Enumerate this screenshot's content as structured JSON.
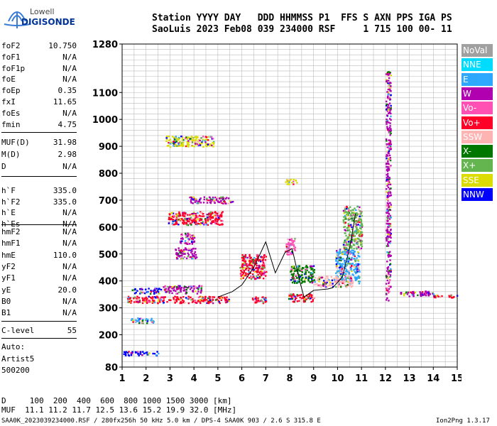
{
  "logo": {
    "line1": "Lowell",
    "line2": "DIGISONDE"
  },
  "header": {
    "line1": "Station YYYY DAY   DDD HHMMSS P1  FFS S AXN PPS IGA PS",
    "line2": "SaoLuis 2023 Feb08 039 234000 RSF     1 715 100 00- 11"
  },
  "params1": [
    {
      "k": "foF2",
      "v": "10.750"
    },
    {
      "k": "foF1",
      "v": "N/A"
    },
    {
      "k": "foF1p",
      "v": "N/A"
    },
    {
      "k": "foE",
      "v": "N/A"
    },
    {
      "k": "foEp",
      "v": "0.35"
    },
    {
      "k": "fxI",
      "v": "11.65"
    },
    {
      "k": "foEs",
      "v": "N/A"
    },
    {
      "k": "fmin",
      "v": "4.75"
    }
  ],
  "params2": [
    {
      "k": "MUF(D)",
      "v": "31.98"
    },
    {
      "k": "M(D)",
      "v": "2.98"
    },
    {
      "k": "D",
      "v": "N/A"
    }
  ],
  "params3": [
    {
      "k": "h`F",
      "v": "335.0"
    },
    {
      "k": "h`F2",
      "v": "335.0"
    },
    {
      "k": "h`E",
      "v": "N/A"
    },
    {
      "k": "h`Es",
      "v": "N/A"
    }
  ],
  "params4": [
    {
      "k": "hmF2",
      "v": "N/A"
    },
    {
      "k": "hmF1",
      "v": "N/A"
    },
    {
      "k": "hmE",
      "v": "110.0"
    },
    {
      "k": "yF2",
      "v": "N/A"
    },
    {
      "k": "yF1",
      "v": "N/A"
    },
    {
      "k": "yE",
      "v": "20.0"
    },
    {
      "k": "B0",
      "v": "N/A"
    },
    {
      "k": "B1",
      "v": "N/A"
    }
  ],
  "clevel": {
    "k": "C-level",
    "v": "55"
  },
  "auto": {
    "l1": "Auto:",
    "l2": "Artist5",
    "l3": "500200"
  },
  "legend": [
    {
      "label": "NoVal",
      "color": "#a0a0a0"
    },
    {
      "label": "NNE",
      "color": "#00dcff"
    },
    {
      "label": "E",
      "color": "#2ea8ff"
    },
    {
      "label": "W",
      "color": "#b000b0"
    },
    {
      "label": "Vo-",
      "color": "#ff50b4"
    },
    {
      "label": "Vo+",
      "color": "#ff0028"
    },
    {
      "label": "SSW",
      "color": "#ffb4b4"
    },
    {
      "label": "X-",
      "color": "#007800"
    },
    {
      "label": "X+",
      "color": "#64b450"
    },
    {
      "label": "SSE",
      "color": "#dcdc00"
    },
    {
      "label": "NNW",
      "color": "#0000ff"
    }
  ],
  "footer": {
    "d_row": "D     100  200  400  600  800 1000 1500 3000 [km]",
    "muf_row": "MUF  11.1 11.2 11.7 12.5 13.6 15.2 19.9 32.0 [MHz]",
    "file_line": "SAA0K_2023039234000.RSF / 280fx256h 50 kHz 5.0 km / DPS-4 SAA0K 903 / 2.6 S 315.8 E",
    "version": "Ion2Png 1.3.17"
  },
  "chart_data": {
    "type": "scatter",
    "title": "",
    "xlabel": "",
    "ylabel": "",
    "x_ticks": [
      "1",
      "2",
      "3",
      "4",
      "5",
      "6",
      "7",
      "8",
      "9",
      "10",
      "11",
      "12",
      "13",
      "14",
      "15"
    ],
    "y_ticks": [
      "80",
      "200",
      "300",
      "400",
      "500",
      "600",
      "700",
      "800",
      "900",
      "1000",
      "1100",
      "1280"
    ],
    "xlim": [
      1,
      15
    ],
    "ylim": [
      80,
      1280
    ],
    "grid": true,
    "trace": {
      "name": "",
      "points": [
        [
          5.0,
          340
        ],
        [
          5.6,
          360
        ],
        [
          6.0,
          385
        ],
        [
          6.5,
          450
        ],
        [
          7.0,
          545
        ],
        [
          7.4,
          430
        ],
        [
          7.8,
          505
        ],
        [
          8.1,
          520
        ],
        [
          8.4,
          405
        ],
        [
          8.6,
          340
        ],
        [
          9.0,
          365
        ],
        [
          9.6,
          370
        ],
        [
          9.8,
          375
        ],
        [
          10.2,
          415
        ],
        [
          10.5,
          520
        ],
        [
          10.75,
          650
        ]
      ]
    },
    "echo_clusters": [
      {
        "x": [
          1.0,
          2.5
        ],
        "y": [
          125,
          140
        ],
        "dir": "NNW"
      },
      {
        "x": [
          1.3,
          2.3
        ],
        "y": [
          245,
          265
        ],
        "dir": "E"
      },
      {
        "x": [
          1.2,
          5.5
        ],
        "y": [
          320,
          345
        ],
        "dir": "Vo+"
      },
      {
        "x": [
          2.7,
          4.3
        ],
        "y": [
          355,
          385
        ],
        "dir": "W"
      },
      {
        "x": [
          1.4,
          2.6
        ],
        "y": [
          355,
          375
        ],
        "dir": "NNW"
      },
      {
        "x": [
          3.2,
          4.1
        ],
        "y": [
          485,
          525
        ],
        "dir": "W"
      },
      {
        "x": [
          3.4,
          4.0
        ],
        "y": [
          540,
          580
        ],
        "dir": "W"
      },
      {
        "x": [
          2.9,
          5.2
        ],
        "y": [
          610,
          660
        ],
        "dir": "Vo+"
      },
      {
        "x": [
          3.8,
          5.6
        ],
        "y": [
          690,
          715
        ],
        "dir": "W"
      },
      {
        "x": [
          2.8,
          4.8
        ],
        "y": [
          900,
          940
        ],
        "dir": "SSE"
      },
      {
        "x": [
          5.9,
          7.0
        ],
        "y": [
          410,
          500
        ],
        "dir": "Vo+"
      },
      {
        "x": [
          6.4,
          7.0
        ],
        "y": [
          320,
          345
        ],
        "dir": "Vo+"
      },
      {
        "x": [
          7.8,
          8.2
        ],
        "y": [
          500,
          560
        ],
        "dir": "Vo-"
      },
      {
        "x": [
          8.0,
          9.0
        ],
        "y": [
          395,
          460
        ],
        "dir": "X-"
      },
      {
        "x": [
          7.9,
          9.0
        ],
        "y": [
          325,
          355
        ],
        "dir": "Vo+"
      },
      {
        "x": [
          9.9,
          10.9
        ],
        "y": [
          390,
          520
        ],
        "dir": "E"
      },
      {
        "x": [
          10.2,
          11.0
        ],
        "y": [
          520,
          680
        ],
        "dir": "X+"
      },
      {
        "x": [
          9.0,
          10.6
        ],
        "y": [
          380,
          420
        ],
        "dir": "SSW"
      },
      {
        "x": [
          12.0,
          12.2
        ],
        "y": [
          330,
          1180
        ],
        "dir": "W"
      },
      {
        "x": [
          12.6,
          14.0
        ],
        "y": [
          345,
          365
        ],
        "dir": "W"
      },
      {
        "x": [
          14.0,
          15.0
        ],
        "y": [
          340,
          350
        ],
        "dir": "Vo+"
      },
      {
        "x": [
          7.8,
          8.3
        ],
        "y": [
          760,
          780
        ],
        "dir": "SSE"
      }
    ]
  }
}
